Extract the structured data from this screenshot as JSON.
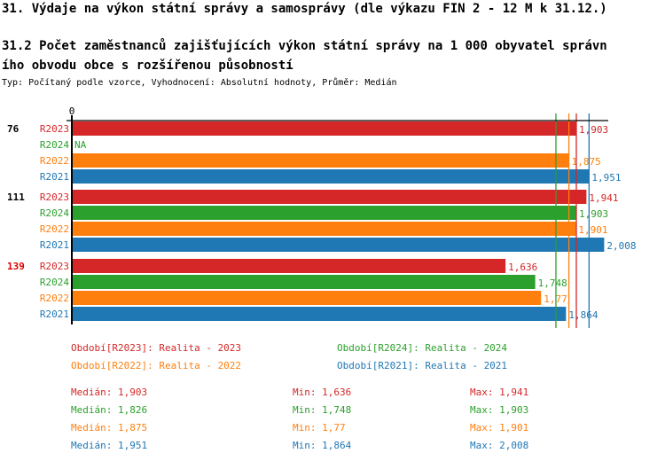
{
  "title": "31. Výdaje na výkon státní správy a samosprávy (dle výkazu FIN 2 - 12 M k 31.12.)",
  "subtitle_line1": "31.2 Počet zaměstnanců zajišťujících výkon státní správy na 1 000 obyvatel správn",
  "subtitle_line2": "ího obvodu obce s rozšířenou působností",
  "type_line": "Typ: Počítaný podle vzorce, Vyhodnocení: Absolutní hodnoty, Průměr: Medián",
  "chart_data": {
    "type": "bar",
    "orientation": "horizontal",
    "x_tick_labels": [
      "0"
    ],
    "groups": [
      {
        "label": "76",
        "highlight": false,
        "rows": [
          {
            "series": "R2023",
            "value": 1.903,
            "label": "1,903"
          },
          {
            "series": "R2024",
            "value": null,
            "label": "NA"
          },
          {
            "series": "R2022",
            "value": 1.875,
            "label": "1,875"
          },
          {
            "series": "R2021",
            "value": 1.951,
            "label": "1,951"
          }
        ]
      },
      {
        "label": "111",
        "highlight": false,
        "rows": [
          {
            "series": "R2023",
            "value": 1.941,
            "label": "1,941"
          },
          {
            "series": "R2024",
            "value": 1.903,
            "label": "1,903"
          },
          {
            "series": "R2022",
            "value": 1.901,
            "label": "1,901"
          },
          {
            "series": "R2021",
            "value": 2.008,
            "label": "2,008"
          }
        ]
      },
      {
        "label": "139",
        "highlight": true,
        "rows": [
          {
            "series": "R2023",
            "value": 1.636,
            "label": "1,636"
          },
          {
            "series": "R2024",
            "value": 1.748,
            "label": "1,748"
          },
          {
            "series": "R2022",
            "value": 1.77,
            "label": "1,77"
          },
          {
            "series": "R2021",
            "value": 1.864,
            "label": "1,864"
          }
        ]
      }
    ],
    "colors": {
      "R2023": "#d62728",
      "R2024": "#2ca02c",
      "R2022": "#ff7f0e",
      "R2021": "#1f77b4",
      "highlight": "#e00000"
    },
    "median_lines": {
      "R2023": 1.903,
      "R2024": 1.826,
      "R2022": 1.875,
      "R2021": 1.951
    },
    "legend": [
      {
        "series": "R2023",
        "text": "Období[R2023]: Realita - 2023"
      },
      {
        "series": "R2024",
        "text": "Období[R2024]: Realita - 2024"
      },
      {
        "series": "R2022",
        "text": "Období[R2022]: Realita - 2022"
      },
      {
        "series": "R2021",
        "text": "Období[R2021]: Realita - 2021"
      }
    ],
    "stats": [
      {
        "series": "R2023",
        "median": "Medián: 1,903",
        "min": "Min: 1,636",
        "max": "Max: 1,941"
      },
      {
        "series": "R2024",
        "median": "Medián: 1,826",
        "min": "Min: 1,748",
        "max": "Max: 1,903"
      },
      {
        "series": "R2022",
        "median": "Medián: 1,875",
        "min": "Min: 1,77",
        "max": "Max: 1,901"
      },
      {
        "series": "R2021",
        "median": "Medián: 1,951",
        "min": "Min: 1,864",
        "max": "Max: 2,008"
      }
    ]
  }
}
